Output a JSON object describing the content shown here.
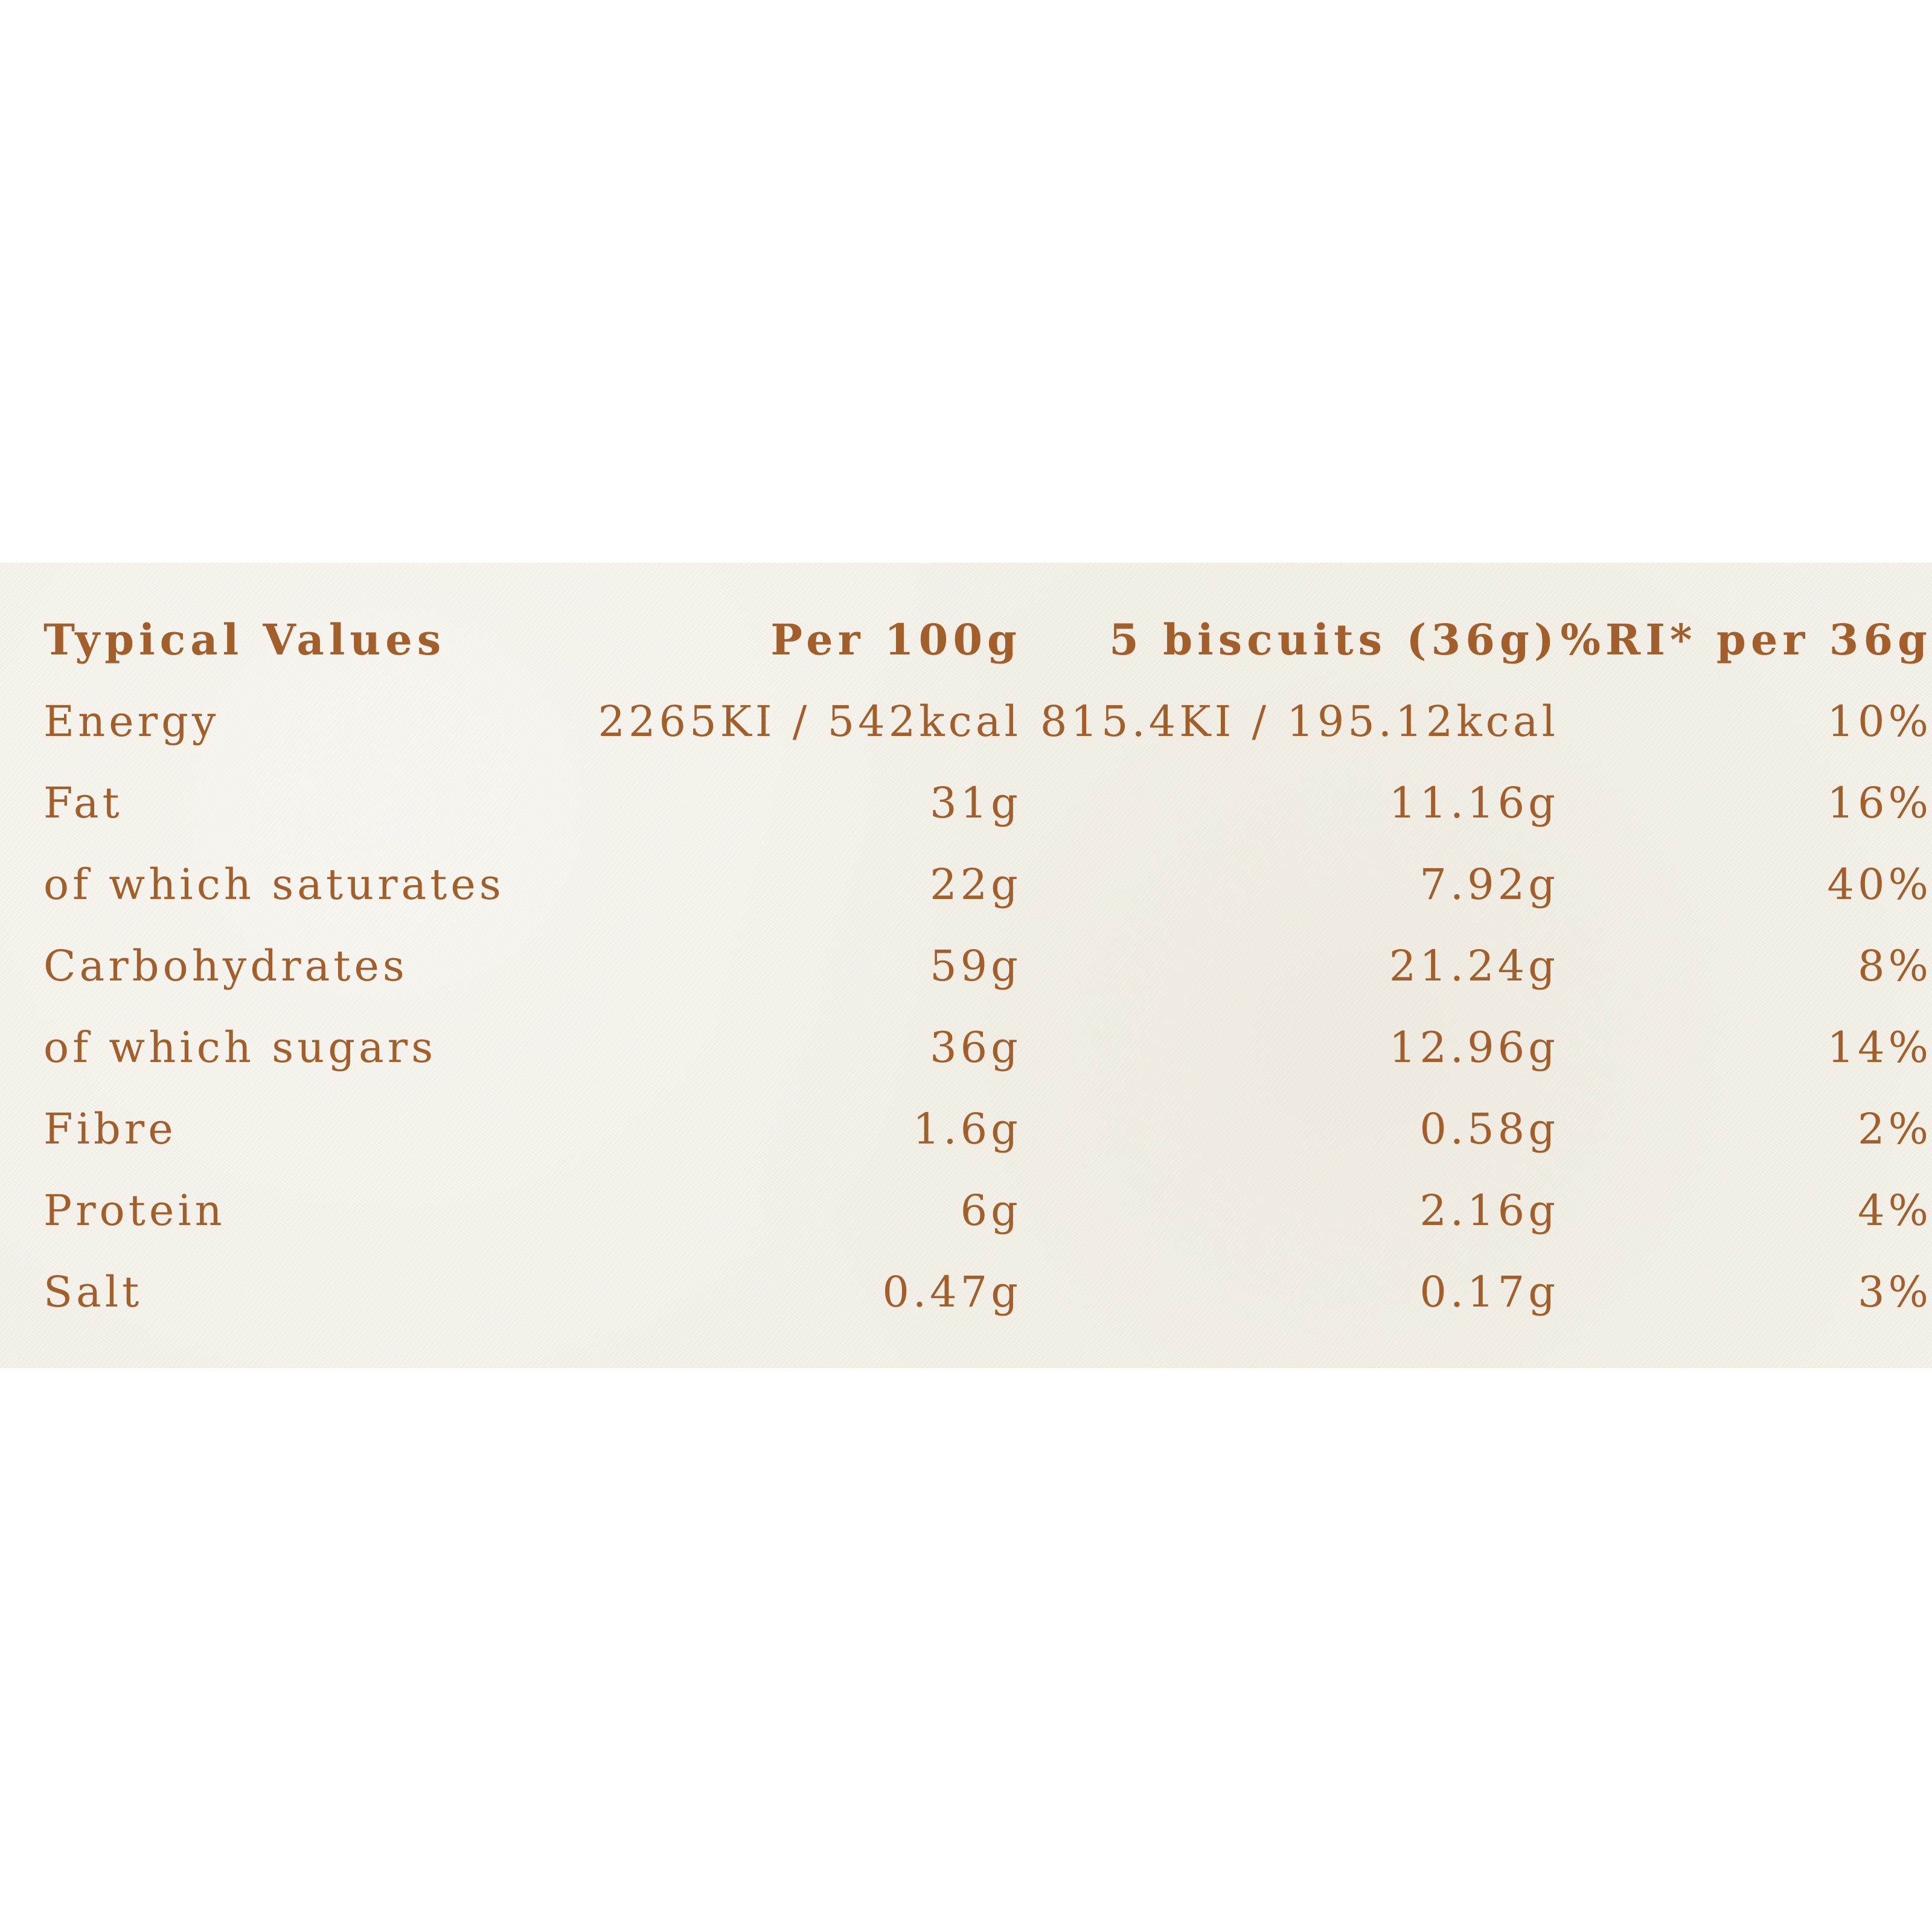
{
  "table": {
    "headers": [
      "Typical Values",
      "Per 100g",
      "5 biscuits (36g)",
      "%RI* per 36g"
    ],
    "rows": [
      {
        "label": "Energy",
        "per100g": "2265KI / 542kcal",
        "serving": "815.4KI / 195.12kcal",
        "ri": "10%"
      },
      {
        "label": "Fat",
        "per100g": "31g",
        "serving": "11.16g",
        "ri": "16%"
      },
      {
        "label": "of which saturates",
        "per100g": "22g",
        "serving": "7.92g",
        "ri": "40%"
      },
      {
        "label": "Carbohydrates",
        "per100g": "59g",
        "serving": "21.24g",
        "ri": "8%"
      },
      {
        "label": "of which sugars",
        "per100g": "36g",
        "serving": "12.96g",
        "ri": "14%"
      },
      {
        "label": "Fibre",
        "per100g": "1.6g",
        "serving": "0.58g",
        "ri": "2%"
      },
      {
        "label": "Protein",
        "per100g": "6g",
        "serving": "2.16g",
        "ri": "4%"
      },
      {
        "label": "Salt",
        "per100g": "0.47g",
        "serving": "0.17g",
        "ri": "3%"
      }
    ]
  },
  "colors": {
    "text": "#a35f2b",
    "panel": "#f4f1e9",
    "page": "#fefefe"
  }
}
